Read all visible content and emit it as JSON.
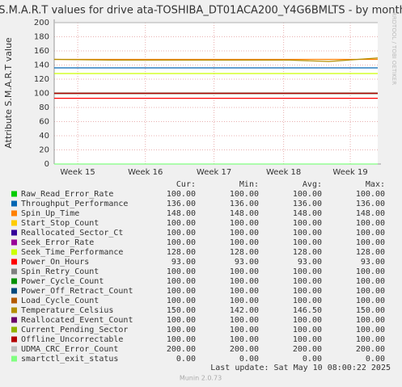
{
  "chart_data": {
    "type": "line",
    "title": "S.M.A.R.T values for drive ata-TOSHIBA_DT01ACA200_Y4G6BMLTS - by month",
    "ylabel": "Attribute S.M.A.R.T value",
    "watermark": "RRDTOOL / TOBI OETIKER",
    "x": [
      0,
      6,
      12,
      18,
      24,
      28,
      33
    ],
    "xlim": [
      0,
      33
    ],
    "xticks": [
      {
        "value": 2.4,
        "label": "Week 15"
      },
      {
        "value": 9.3,
        "label": "Week 16"
      },
      {
        "value": 16.3,
        "label": "Week 17"
      },
      {
        "value": 23.4,
        "label": "Week 18"
      },
      {
        "value": 30.2,
        "label": "Week 19"
      }
    ],
    "ylim": [
      0,
      200
    ],
    "yticks": [
      0,
      20,
      40,
      60,
      80,
      100,
      120,
      140,
      160,
      180,
      200
    ],
    "grid": true,
    "stat_headers": [
      "Cur:",
      "Min:",
      "Avg:",
      "Max:"
    ],
    "series": [
      {
        "name": "Raw_Read_Error_Rate",
        "color": "#00cc00",
        "values": [
          100,
          100,
          100,
          100,
          100,
          100,
          100
        ],
        "stats": [
          "100.00",
          "100.00",
          "100.00",
          "100.00"
        ]
      },
      {
        "name": "Throughput_Performance",
        "color": "#0066b3",
        "values": [
          136,
          136,
          136,
          136,
          136,
          136,
          136
        ],
        "stats": [
          "136.00",
          "136.00",
          "136.00",
          "136.00"
        ]
      },
      {
        "name": "Spin_Up_Time",
        "color": "#ff8000",
        "values": [
          148,
          148,
          148,
          148,
          148,
          148,
          148
        ],
        "stats": [
          "148.00",
          "148.00",
          "148.00",
          "148.00"
        ]
      },
      {
        "name": "Start_Stop_Count",
        "color": "#ffcc00",
        "values": [
          100,
          100,
          100,
          100,
          100,
          100,
          100
        ],
        "stats": [
          "100.00",
          "100.00",
          "100.00",
          "100.00"
        ]
      },
      {
        "name": "Reallocated_Sector_Ct",
        "color": "#330099",
        "values": [
          100,
          100,
          100,
          100,
          100,
          100,
          100
        ],
        "stats": [
          "100.00",
          "100.00",
          "100.00",
          "100.00"
        ]
      },
      {
        "name": "Seek_Error_Rate",
        "color": "#990099",
        "values": [
          100,
          100,
          100,
          100,
          100,
          100,
          100
        ],
        "stats": [
          "100.00",
          "100.00",
          "100.00",
          "100.00"
        ]
      },
      {
        "name": "Seek_Time_Performance",
        "color": "#ccff00",
        "values": [
          128,
          128,
          128,
          128,
          128,
          128,
          128
        ],
        "stats": [
          "128.00",
          "128.00",
          "128.00",
          "128.00"
        ]
      },
      {
        "name": "Power_On_Hours",
        "color": "#ff0000",
        "values": [
          93,
          93,
          93,
          93,
          93,
          93,
          93
        ],
        "stats": [
          "93.00",
          "93.00",
          "93.00",
          "93.00"
        ]
      },
      {
        "name": "Spin_Retry_Count",
        "color": "#808080",
        "values": [
          100,
          100,
          100,
          100,
          100,
          100,
          100
        ],
        "stats": [
          "100.00",
          "100.00",
          "100.00",
          "100.00"
        ]
      },
      {
        "name": "Power_Cycle_Count",
        "color": "#008f00",
        "values": [
          100,
          100,
          100,
          100,
          100,
          100,
          100
        ],
        "stats": [
          "100.00",
          "100.00",
          "100.00",
          "100.00"
        ]
      },
      {
        "name": "Power_Off_Retract_Count",
        "color": "#00487d",
        "values": [
          100,
          100,
          100,
          100,
          100,
          100,
          100
        ],
        "stats": [
          "100.00",
          "100.00",
          "100.00",
          "100.00"
        ]
      },
      {
        "name": "Load_Cycle_Count",
        "color": "#b35a00",
        "values": [
          100,
          100,
          100,
          100,
          100,
          100,
          100
        ],
        "stats": [
          "100.00",
          "100.00",
          "100.00",
          "100.00"
        ]
      },
      {
        "name": "Temperature_Celsius",
        "color": "#b38f00",
        "values": [
          148,
          147,
          147,
          147,
          147,
          145,
          150
        ],
        "stats": [
          "150.00",
          "142.00",
          "146.50",
          "150.00"
        ]
      },
      {
        "name": "Reallocated_Event_Count",
        "color": "#6b006b",
        "values": [
          100,
          100,
          100,
          100,
          100,
          100,
          100
        ],
        "stats": [
          "100.00",
          "100.00",
          "100.00",
          "100.00"
        ]
      },
      {
        "name": "Current_Pending_Sector",
        "color": "#8fb300",
        "values": [
          100,
          100,
          100,
          100,
          100,
          100,
          100
        ],
        "stats": [
          "100.00",
          "100.00",
          "100.00",
          "100.00"
        ]
      },
      {
        "name": "Offline_Uncorrectable",
        "color": "#b30000",
        "values": [
          100,
          100,
          100,
          100,
          100,
          100,
          100
        ],
        "stats": [
          "100.00",
          "100.00",
          "100.00",
          "100.00"
        ]
      },
      {
        "name": "UDMA_CRC_Error_Count",
        "color": "#bebebe",
        "values": [
          200,
          200,
          200,
          200,
          200,
          200,
          200
        ],
        "stats": [
          "200.00",
          "200.00",
          "200.00",
          "200.00"
        ]
      },
      {
        "name": "smartctl_exit_status",
        "color": "#80ff80",
        "values": [
          0,
          0,
          0,
          0,
          0,
          0,
          0
        ],
        "stats": [
          "0.00",
          "0.00",
          "0.00",
          "0.00"
        ]
      }
    ],
    "last_update": "Last update: Sat May 10 08:00:22 2025",
    "footer": "Munin 2.0.73"
  }
}
